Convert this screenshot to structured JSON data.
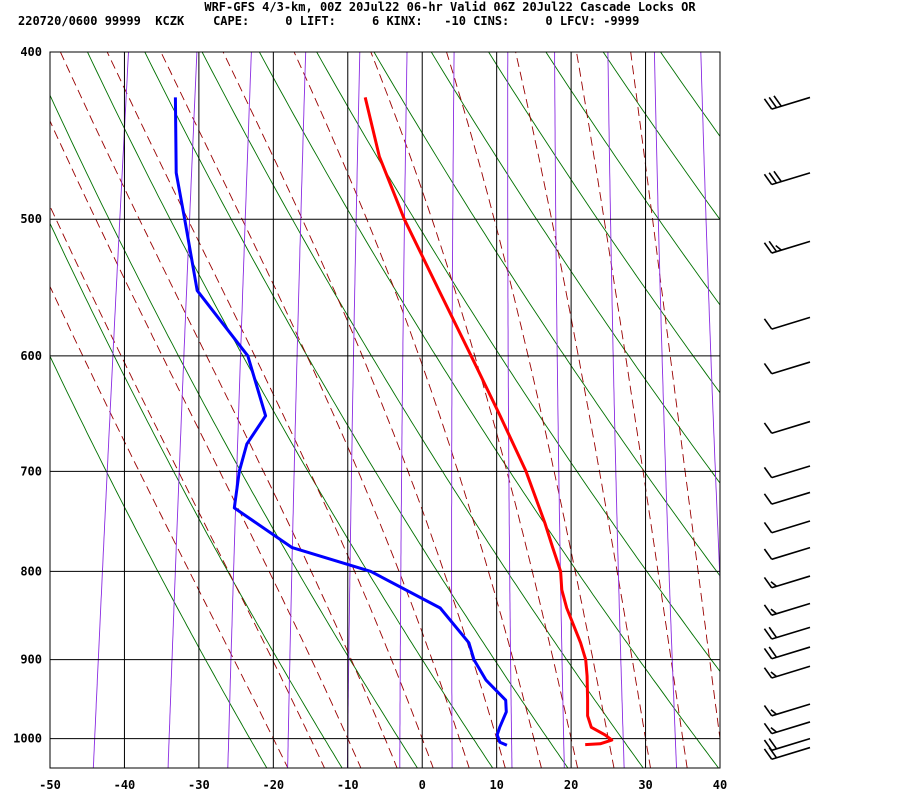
{
  "header": {
    "title": "WRF-GFS 4/3-km, 00Z 20Jul22 06-hr Valid 06Z 20Jul22 Cascade Locks OR",
    "indices": "220720/0600 99999  KCZK    CAPE:     0 LIFT:     6 KINX:   -10 CINS:     0 LFCV: -9999"
  },
  "chart_data": {
    "type": "line",
    "chart_kind": "skew-T log-P sounding",
    "title": "WRF-GFS 4/3-km, 00Z 20Jul22 06-hr Valid 06Z 20Jul22 Cascade Locks OR",
    "xlabel": "",
    "ylabel": "",
    "x_axis": {
      "units": "deg C",
      "range": [
        -50,
        40
      ],
      "ticks": [
        -50,
        -40,
        -30,
        -20,
        -10,
        0,
        10,
        20,
        30,
        40
      ]
    },
    "y_axis": {
      "units": "hPa",
      "scale": "log",
      "range": [
        1040,
        400
      ],
      "ticks": [
        400,
        500,
        600,
        700,
        800,
        900,
        1000
      ]
    },
    "grid": true,
    "background_lines": {
      "dry_adiabats": {
        "color": "#007000",
        "style": "solid",
        "theta_K": [
          250,
          260,
          270,
          280,
          290,
          300,
          310,
          320,
          330,
          340,
          350,
          360,
          370,
          380
        ]
      },
      "moist_adiabats": {
        "color": "#990000",
        "style": "dashed",
        "theta_w_C": [
          -20,
          -15,
          -10,
          -5,
          0,
          5,
          10,
          15,
          20,
          25,
          30,
          35,
          40
        ]
      },
      "mixing_ratio_lines": {
        "color": "#8A2BE2",
        "style": "solid",
        "temp_at_1000hPa_C": [
          -44,
          -34,
          -26,
          -18,
          -10,
          -3,
          4,
          12,
          19,
          27,
          34,
          41
        ]
      }
    },
    "series": [
      {
        "role": "temperature",
        "color": "#ff0000",
        "points": [
          {
            "p": 1008,
            "t": 22.0
          },
          {
            "p": 1007,
            "t": 24.0
          },
          {
            "p": 1002,
            "t": 25.5
          },
          {
            "p": 995,
            "t": 24.5
          },
          {
            "p": 985,
            "t": 22.5
          },
          {
            "p": 970,
            "t": 21.8
          },
          {
            "p": 950,
            "t": 21.5
          },
          {
            "p": 920,
            "t": 21.0
          },
          {
            "p": 900,
            "t": 20.5
          },
          {
            "p": 880,
            "t": 19.5
          },
          {
            "p": 840,
            "t": 17.0
          },
          {
            "p": 820,
            "t": 16.0
          },
          {
            "p": 800,
            "t": 15.5
          },
          {
            "p": 775,
            "t": 14.0
          },
          {
            "p": 750,
            "t": 12.5
          },
          {
            "p": 700,
            "t": 9.0
          },
          {
            "p": 650,
            "t": 4.5
          },
          {
            "p": 600,
            "t": -0.5
          },
          {
            "p": 550,
            "t": -6.0
          },
          {
            "p": 500,
            "t": -12.0
          },
          {
            "p": 460,
            "t": -16.5
          },
          {
            "p": 425,
            "t": -19.5
          }
        ]
      },
      {
        "role": "dewpoint",
        "color": "#0000ff",
        "points": [
          {
            "p": 1009,
            "t": 11.5
          },
          {
            "p": 1005,
            "t": 10.5
          },
          {
            "p": 995,
            "t": 10.0
          },
          {
            "p": 985,
            "t": 10.2
          },
          {
            "p": 965,
            "t": 10.8
          },
          {
            "p": 950,
            "t": 10.5
          },
          {
            "p": 925,
            "t": 7.5
          },
          {
            "p": 900,
            "t": 5.5
          },
          {
            "p": 880,
            "t": 4.5
          },
          {
            "p": 840,
            "t": 0.0
          },
          {
            "p": 800,
            "t": -10.0
          },
          {
            "p": 775,
            "t": -21.0
          },
          {
            "p": 735,
            "t": -29.5
          },
          {
            "p": 700,
            "t": -29.5
          },
          {
            "p": 675,
            "t": -29.0
          },
          {
            "p": 650,
            "t": -27.0
          },
          {
            "p": 600,
            "t": -30.5
          },
          {
            "p": 550,
            "t": -38.5
          },
          {
            "p": 500,
            "t": -41.5
          },
          {
            "p": 470,
            "t": -43.5
          },
          {
            "p": 425,
            "t": -45.0
          }
        ]
      }
    ],
    "wind_barbs": [
      {
        "p": 425,
        "speed_kt": 30
      },
      {
        "p": 470,
        "speed_kt": 30
      },
      {
        "p": 515,
        "speed_kt": 25
      },
      {
        "p": 570,
        "speed_kt": 10
      },
      {
        "p": 605,
        "speed_kt": 10
      },
      {
        "p": 655,
        "speed_kt": 10
      },
      {
        "p": 695,
        "speed_kt": 10
      },
      {
        "p": 720,
        "speed_kt": 10
      },
      {
        "p": 748,
        "speed_kt": 10
      },
      {
        "p": 775,
        "speed_kt": 10
      },
      {
        "p": 805,
        "speed_kt": 15
      },
      {
        "p": 835,
        "speed_kt": 15
      },
      {
        "p": 862,
        "speed_kt": 20
      },
      {
        "p": 885,
        "speed_kt": 20
      },
      {
        "p": 908,
        "speed_kt": 15
      },
      {
        "p": 955,
        "speed_kt": 15
      },
      {
        "p": 978,
        "speed_kt": 15
      },
      {
        "p": 1000,
        "speed_kt": 20
      },
      {
        "p": 1012,
        "speed_kt": 20
      }
    ]
  }
}
